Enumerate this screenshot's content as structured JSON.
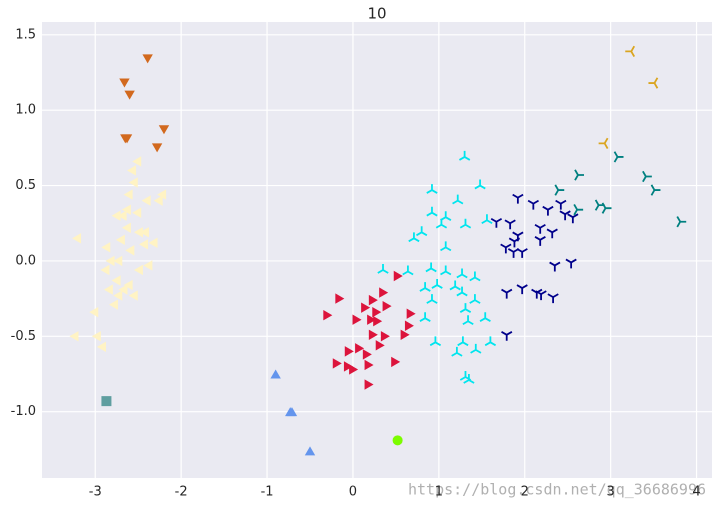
{
  "chart_data": {
    "type": "scatter",
    "title": "10",
    "xlim": [
      -3.62,
      4.18
    ],
    "ylim": [
      -1.44,
      1.585
    ],
    "xticks": [
      -3,
      -2,
      -1,
      0,
      1,
      2,
      3,
      4
    ],
    "yticks": [
      {
        "value": -1,
        "label": "-1.0"
      },
      -0.5,
      {
        "value": 0,
        "label": "0.0"
      },
      0.5,
      {
        "value": 1,
        "label": "1.0"
      },
      1.5
    ],
    "grid": true,
    "annotation": "https://blog.csdn.net/qq_36686996",
    "series": [
      {
        "color": "#d2691e",
        "marker": "triangle_down",
        "x": [
          -2.39,
          -2.66,
          -2.6,
          -2.65,
          -2.63,
          -2.2,
          -2.28
        ],
        "y": [
          1.35,
          1.19,
          1.11,
          0.82,
          0.82,
          0.88,
          0.76
        ]
      },
      {
        "color": "#fff3c4",
        "marker": "triangle_left",
        "x": [
          -3.2,
          -3.23,
          -2.97,
          -2.91,
          -3.0,
          -2.86,
          -2.87,
          -2.83,
          -2.77,
          -2.74,
          -2.72,
          -2.69,
          -2.67,
          -2.62,
          -2.6,
          -2.56,
          -2.5,
          -2.54,
          -2.62,
          -2.58,
          -2.48,
          -2.42,
          -2.37,
          -2.31,
          -2.48,
          -2.66,
          -2.6,
          -2.54,
          -2.72,
          -2.39,
          -2.25,
          -2.21,
          -2.74,
          -2.5,
          -2.81,
          -2.41
        ],
        "y": [
          0.15,
          -0.5,
          -0.5,
          -0.57,
          -0.34,
          0.09,
          -0.06,
          -0.19,
          -0.29,
          -0.13,
          0.0,
          0.14,
          0.3,
          0.34,
          0.44,
          0.6,
          0.66,
          0.52,
          0.22,
          0.07,
          0.19,
          0.11,
          -0.03,
          0.12,
          -0.06,
          -0.19,
          -0.16,
          -0.23,
          -0.23,
          0.4,
          0.4,
          0.44,
          0.3,
          0.32,
          0.0,
          0.19
        ]
      },
      {
        "color": "#5f9ea0",
        "marker": "square",
        "x": [
          -2.87
        ],
        "y": [
          -0.93
        ]
      },
      {
        "color": "#6495ed",
        "marker": "triangle_up",
        "x": [
          -0.9,
          -0.73,
          -0.71,
          -0.5
        ],
        "y": [
          -0.76,
          -1.01,
          -1.01,
          -1.27
        ]
      },
      {
        "color": "#7cfc00",
        "marker": "circle",
        "x": [
          0.52
        ],
        "y": [
          -1.19
        ]
      },
      {
        "color": "#dc143c",
        "marker": "triangle_right",
        "x": [
          0.51,
          -0.17,
          -0.31,
          0.03,
          0.13,
          0.22,
          0.34,
          0.38,
          0.26,
          0.2,
          0.27,
          0.66,
          0.64,
          0.59,
          0.36,
          0.3,
          0.06,
          -0.06,
          0.15,
          -0.2,
          -0.07,
          -0.01,
          0.17,
          0.48,
          0.17,
          0.22
        ],
        "y": [
          -0.1,
          -0.25,
          -0.36,
          -0.39,
          -0.31,
          -0.26,
          -0.21,
          -0.3,
          -0.34,
          -0.39,
          -0.4,
          -0.35,
          -0.43,
          -0.49,
          -0.5,
          -0.56,
          -0.58,
          -0.6,
          -0.62,
          -0.68,
          -0.7,
          -0.72,
          -0.69,
          -0.67,
          -0.82,
          -0.49
        ]
      },
      {
        "color": "#00e5ee",
        "marker": "tri_down",
        "x": [
          1.3,
          1.48,
          0.92,
          1.22,
          0.92,
          1.08,
          1.03,
          1.31,
          1.56,
          0.8,
          0.71,
          1.08,
          0.35,
          0.91,
          0.64,
          1.08,
          1.27,
          1.42,
          0.98,
          0.84,
          1.19,
          1.27,
          1.42,
          0.92,
          1.31,
          1.54,
          0.84,
          1.34,
          1.28,
          0.96,
          1.6,
          1.43,
          1.21,
          1.31,
          1.35
        ],
        "y": [
          0.69,
          0.5,
          0.47,
          0.4,
          0.32,
          0.29,
          0.24,
          0.24,
          0.27,
          0.19,
          0.15,
          0.09,
          -0.06,
          -0.05,
          -0.07,
          -0.07,
          -0.09,
          -0.11,
          -0.16,
          -0.18,
          -0.17,
          -0.21,
          -0.26,
          -0.26,
          -0.32,
          -0.38,
          -0.38,
          -0.4,
          -0.54,
          -0.54,
          -0.54,
          -0.59,
          -0.61,
          -0.77,
          -0.79
        ]
      },
      {
        "color": "#00008b",
        "marker": "tri_up",
        "x": [
          1.92,
          2.1,
          2.42,
          2.27,
          2.47,
          2.56,
          1.67,
          1.83,
          2.18,
          2.32,
          1.92,
          1.88,
          1.78,
          1.87,
          1.97,
          2.35,
          2.54,
          1.79,
          1.97,
          2.14,
          2.19,
          2.33,
          1.79,
          2.18
        ],
        "y": [
          0.42,
          0.38,
          0.38,
          0.34,
          0.31,
          0.29,
          0.26,
          0.25,
          0.22,
          0.19,
          0.17,
          0.13,
          0.09,
          0.06,
          0.06,
          -0.03,
          -0.01,
          -0.21,
          -0.18,
          -0.21,
          -0.22,
          -0.24,
          -0.49,
          0.14
        ]
      },
      {
        "color": "#008080",
        "marker": "tri_left",
        "x": [
          2.39,
          2.62,
          2.61,
          2.86,
          2.94,
          3.08,
          3.41,
          3.51,
          3.81
        ],
        "y": [
          0.47,
          0.57,
          0.34,
          0.37,
          0.35,
          0.69,
          0.56,
          0.47,
          0.26
        ]
      },
      {
        "color": "#daa520",
        "marker": "tri_right",
        "x": [
          3.24,
          3.51,
          2.93
        ],
        "y": [
          1.39,
          1.18,
          0.78
        ]
      }
    ]
  }
}
